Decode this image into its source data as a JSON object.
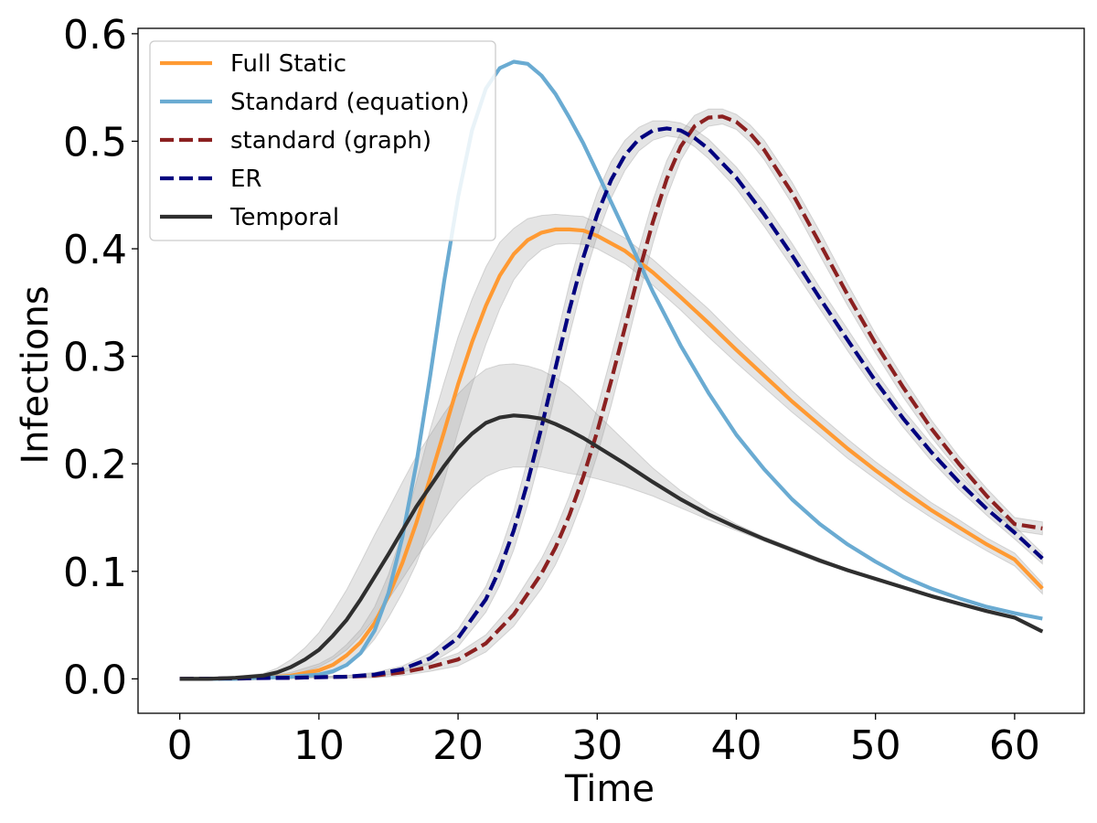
{
  "chart_data": {
    "type": "line",
    "xlabel": "Time",
    "ylabel": "Infections",
    "xlim": [
      -3,
      65
    ],
    "ylim": [
      -0.032,
      0.605
    ],
    "xticks": [
      0,
      10,
      20,
      30,
      40,
      50,
      60
    ],
    "yticks": [
      0.0,
      0.1,
      0.2,
      0.3,
      0.4,
      0.5,
      0.6
    ],
    "ytick_labels": [
      "0.0",
      "0.1",
      "0.2",
      "0.3",
      "0.4",
      "0.5",
      "0.6"
    ],
    "grid": false,
    "legend_position": "top-left",
    "series": [
      {
        "name": "Full Static",
        "color": "#ff9a33",
        "dash": false,
        "x": [
          0,
          2,
          4,
          6,
          8,
          10,
          11,
          12,
          13,
          14,
          15,
          16,
          17,
          18,
          19,
          20,
          21,
          22,
          23,
          24,
          25,
          26,
          27,
          28,
          29,
          30,
          32,
          34,
          36,
          38,
          40,
          42,
          44,
          46,
          48,
          50,
          52,
          54,
          56,
          58,
          60,
          62
        ],
        "y": [
          0,
          0,
          0,
          0.001,
          0.003,
          0.008,
          0.013,
          0.022,
          0.034,
          0.052,
          0.077,
          0.108,
          0.145,
          0.187,
          0.23,
          0.274,
          0.313,
          0.347,
          0.375,
          0.395,
          0.408,
          0.415,
          0.418,
          0.418,
          0.417,
          0.412,
          0.398,
          0.378,
          0.355,
          0.331,
          0.306,
          0.282,
          0.258,
          0.236,
          0.214,
          0.194,
          0.175,
          0.157,
          0.141,
          0.125,
          0.111,
          0.084
        ],
        "band": [
          0,
          0,
          0,
          0.001,
          0.003,
          0.006,
          0.008,
          0.01,
          0.012,
          0.015,
          0.02,
          0.028,
          0.038,
          0.045,
          0.046,
          0.044,
          0.04,
          0.036,
          0.031,
          0.024,
          0.02,
          0.016,
          0.014,
          0.013,
          0.013,
          0.012,
          0.012,
          0.012,
          0.012,
          0.013,
          0.012,
          0.011,
          0.01,
          0.009,
          0.009,
          0.008,
          0.008,
          0.007,
          0.007,
          0.006,
          0.006,
          0.005
        ]
      },
      {
        "name": "Standard (equation)",
        "color": "#6aabd2",
        "dash": false,
        "x": [
          0,
          2,
          4,
          6,
          8,
          10,
          11,
          12,
          13,
          14,
          15,
          16,
          17,
          18,
          19,
          20,
          21,
          22,
          23,
          24,
          25,
          26,
          27,
          28,
          29,
          30,
          32,
          34,
          36,
          38,
          40,
          42,
          44,
          46,
          48,
          50,
          52,
          54,
          56,
          58,
          60,
          62
        ],
        "y": [
          0,
          0,
          0,
          0.001,
          0.002,
          0.004,
          0.007,
          0.013,
          0.024,
          0.045,
          0.08,
          0.132,
          0.2,
          0.282,
          0.37,
          0.448,
          0.51,
          0.549,
          0.568,
          0.574,
          0.572,
          0.561,
          0.544,
          0.522,
          0.498,
          0.471,
          0.416,
          0.36,
          0.31,
          0.266,
          0.227,
          0.195,
          0.167,
          0.144,
          0.125,
          0.109,
          0.095,
          0.084,
          0.075,
          0.067,
          0.061,
          0.056
        ]
      },
      {
        "name": "standard (graph)",
        "color": "#8b2020",
        "dash": true,
        "x": [
          0,
          4,
          8,
          12,
          14,
          16,
          18,
          20,
          22,
          24,
          26,
          27,
          28,
          29,
          30,
          31,
          32,
          33,
          34,
          35,
          36,
          37,
          38,
          39,
          40,
          41,
          42,
          44,
          46,
          48,
          50,
          52,
          54,
          56,
          58,
          60,
          62
        ],
        "y": [
          0,
          0.0005,
          0.001,
          0.002,
          0.003,
          0.006,
          0.011,
          0.018,
          0.033,
          0.06,
          0.098,
          0.122,
          0.152,
          0.188,
          0.23,
          0.277,
          0.327,
          0.378,
          0.425,
          0.465,
          0.495,
          0.514,
          0.522,
          0.523,
          0.518,
          0.507,
          0.492,
          0.452,
          0.405,
          0.357,
          0.312,
          0.271,
          0.233,
          0.2,
          0.17,
          0.144,
          0.14
        ],
        "band": [
          0,
          0,
          0,
          0.001,
          0.002,
          0.003,
          0.004,
          0.006,
          0.008,
          0.011,
          0.014,
          0.016,
          0.018,
          0.02,
          0.022,
          0.023,
          0.023,
          0.022,
          0.02,
          0.017,
          0.013,
          0.01,
          0.008,
          0.007,
          0.007,
          0.008,
          0.009,
          0.01,
          0.011,
          0.01,
          0.009,
          0.009,
          0.008,
          0.007,
          0.007,
          0.006,
          0.006
        ]
      },
      {
        "name": "ER",
        "color": "#00007f",
        "dash": true,
        "x": [
          0,
          4,
          8,
          12,
          14,
          16,
          18,
          20,
          22,
          23,
          24,
          25,
          26,
          27,
          28,
          29,
          30,
          31,
          32,
          33,
          34,
          35,
          36,
          37,
          38,
          40,
          42,
          44,
          46,
          48,
          50,
          52,
          54,
          56,
          58,
          60,
          62
        ],
        "y": [
          0,
          0.0005,
          0.001,
          0.002,
          0.004,
          0.009,
          0.019,
          0.038,
          0.074,
          0.102,
          0.138,
          0.183,
          0.234,
          0.289,
          0.343,
          0.392,
          0.432,
          0.464,
          0.487,
          0.502,
          0.51,
          0.512,
          0.51,
          0.503,
          0.493,
          0.466,
          0.432,
          0.394,
          0.354,
          0.315,
          0.277,
          0.242,
          0.211,
          0.183,
          0.158,
          0.136,
          0.112
        ],
        "band": [
          0,
          0,
          0,
          0.001,
          0.002,
          0.003,
          0.005,
          0.008,
          0.012,
          0.015,
          0.018,
          0.021,
          0.023,
          0.024,
          0.024,
          0.022,
          0.02,
          0.017,
          0.014,
          0.011,
          0.009,
          0.007,
          0.007,
          0.008,
          0.009,
          0.01,
          0.011,
          0.011,
          0.01,
          0.01,
          0.009,
          0.008,
          0.008,
          0.007,
          0.006,
          0.006,
          0.005
        ]
      },
      {
        "name": "Temporal",
        "color": "#2f2f2f",
        "dash": false,
        "x": [
          0,
          2,
          4,
          6,
          7,
          8,
          9,
          10,
          11,
          12,
          13,
          14,
          15,
          16,
          17,
          18,
          19,
          20,
          21,
          22,
          23,
          24,
          25,
          26,
          27,
          28,
          29,
          30,
          32,
          34,
          36,
          38,
          40,
          42,
          44,
          46,
          48,
          50,
          52,
          54,
          56,
          58,
          60,
          62
        ],
        "y": [
          0,
          0,
          0.001,
          0.003,
          0.006,
          0.011,
          0.018,
          0.027,
          0.04,
          0.055,
          0.074,
          0.095,
          0.116,
          0.138,
          0.16,
          0.179,
          0.198,
          0.215,
          0.228,
          0.238,
          0.243,
          0.245,
          0.244,
          0.242,
          0.237,
          0.231,
          0.224,
          0.216,
          0.2,
          0.183,
          0.167,
          0.153,
          0.141,
          0.13,
          0.12,
          0.11,
          0.101,
          0.093,
          0.085,
          0.077,
          0.07,
          0.063,
          0.057,
          0.044
        ],
        "band": [
          0,
          0,
          0.001,
          0.002,
          0.004,
          0.007,
          0.011,
          0.016,
          0.022,
          0.028,
          0.034,
          0.039,
          0.042,
          0.045,
          0.047,
          0.048,
          0.049,
          0.05,
          0.05,
          0.05,
          0.049,
          0.048,
          0.047,
          0.045,
          0.043,
          0.04,
          0.035,
          0.03,
          0.021,
          0.013,
          0.008,
          0.005,
          0.003,
          0.002,
          0.002,
          0.002,
          0.001,
          0.001,
          0.001,
          0.001,
          0.001,
          0.001,
          0.001,
          0.001
        ]
      }
    ]
  }
}
